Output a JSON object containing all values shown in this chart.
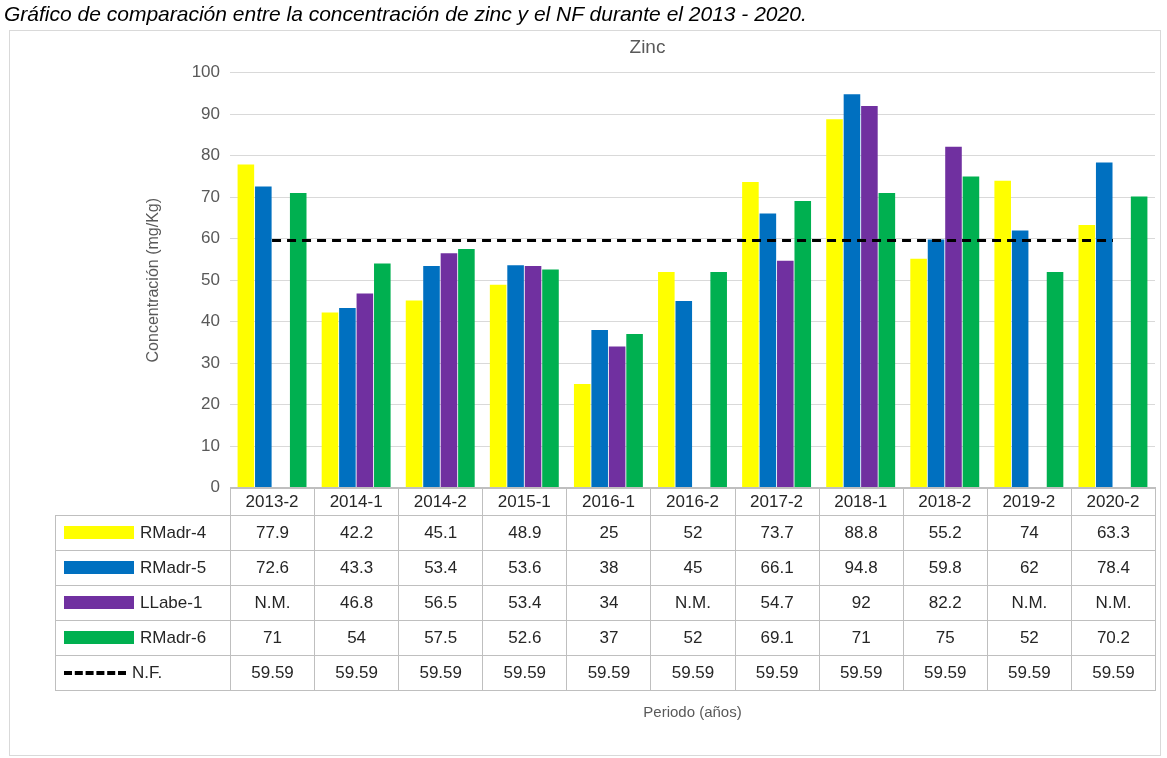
{
  "chart_data": {
    "type": "bar",
    "title": "Zinc",
    "ylabel": "Concentración (mg/Kg)",
    "annotations": [
      "Gráfico de comparación entre la concentración de zinc y el NF durante el 2013 - 2020.",
      "Periodo (años)"
    ],
    "categories": [
      "2013-2",
      "2014-1",
      "2014-2",
      "2015-1",
      "2016-1",
      "2016-2",
      "2017-2",
      "2018-1",
      "2018-2",
      "2019-2",
      "2020-2"
    ],
    "series": [
      {
        "name": "RMadr-4",
        "color": "#ffff00",
        "values": [
          77.9,
          42.2,
          45.1,
          48.9,
          25,
          52,
          73.7,
          88.8,
          55.2,
          74,
          63.3
        ],
        "value_labels": [
          "77.9",
          "42.2",
          "45.1",
          "48.9",
          "25",
          "52",
          "73.7",
          "88.8",
          "55.2",
          "74",
          "63.3"
        ]
      },
      {
        "name": "RMadr-5",
        "color": "#0070c0",
        "values": [
          72.6,
          43.3,
          53.4,
          53.6,
          38,
          45,
          66.1,
          94.8,
          59.8,
          62,
          78.4
        ],
        "value_labels": [
          "72.6",
          "43.3",
          "53.4",
          "53.6",
          "38",
          "45",
          "66.1",
          "94.8",
          "59.8",
          "62",
          "78.4"
        ]
      },
      {
        "name": "LLabe-1",
        "color": "#7030a0",
        "values": [
          null,
          46.8,
          56.5,
          53.4,
          34,
          null,
          54.7,
          92,
          82.2,
          null,
          null
        ],
        "value_labels": [
          "N.M.",
          "46.8",
          "56.5",
          "53.4",
          "34",
          "N.M.",
          "54.7",
          "92",
          "82.2",
          "N.M.",
          "N.M."
        ]
      },
      {
        "name": "RMadr-6",
        "color": "#00b050",
        "values": [
          71,
          54,
          57.5,
          52.6,
          37,
          52,
          69.1,
          71,
          75,
          52,
          70.2
        ],
        "value_labels": [
          "71",
          "54",
          "57.5",
          "52.6",
          "37",
          "52",
          "69.1",
          "71",
          "75",
          "52",
          "70.2"
        ]
      },
      {
        "name": "N.F.",
        "type": "line",
        "color": "#000000",
        "line_style": "dashed",
        "marker": "none",
        "values": [
          59.59,
          59.59,
          59.59,
          59.59,
          59.59,
          59.59,
          59.59,
          59.59,
          59.59,
          59.59,
          59.59
        ],
        "value_labels": [
          "59.59",
          "59.59",
          "59.59",
          "59.59",
          "59.59",
          "59.59",
          "59.59",
          "59.59",
          "59.59",
          "59.59",
          "59.59"
        ]
      }
    ],
    "ylim": [
      0,
      100
    ],
    "yticks": [
      0,
      10,
      20,
      30,
      40,
      50,
      60,
      70,
      80,
      90,
      100
    ],
    "grid": "y",
    "legend": "bottom left"
  }
}
